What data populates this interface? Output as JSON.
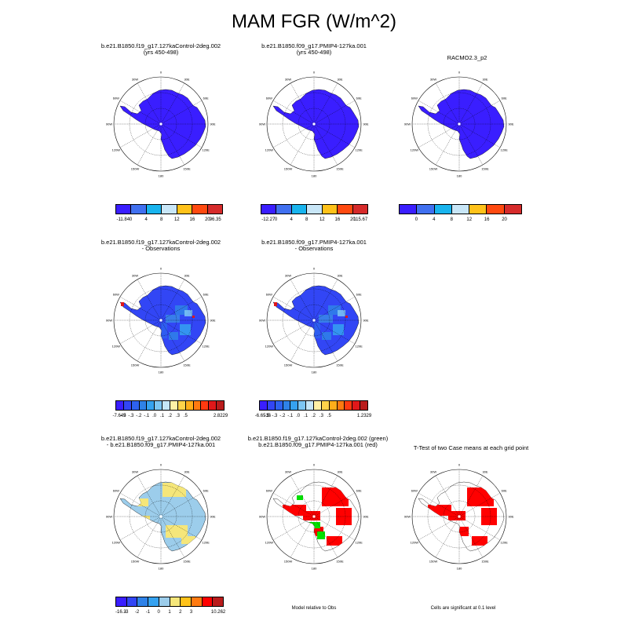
{
  "title": "MAM FGR (W/m^2)",
  "colors": {
    "ice_blue": "#3a1eff",
    "diff_blue": "#9ccdeb",
    "diff_yellow": "#f5e67a",
    "sig_red": "#ff0000",
    "sig_green": "#00e000"
  },
  "meridian_labels": [
    "0",
    "30E",
    "60E",
    "90E",
    "120E",
    "150E",
    "180",
    "150W",
    "120W",
    "90W",
    "60W",
    "30W"
  ],
  "panels": [
    {
      "id": "p1",
      "title_lines": [
        "b.e21.B1850.f19_g17.127kaControl-2deg.002",
        "(yrs 450-498)"
      ],
      "style": "model"
    },
    {
      "id": "p2",
      "title_lines": [
        "b.e21.B1850.f09_g17.PMIP4-127ka.001",
        "(yrs 450-498)"
      ],
      "style": "model"
    },
    {
      "id": "p3",
      "title_lines": [
        "RACMO2.3_p2"
      ],
      "style": "model"
    },
    {
      "id": "p4",
      "title_lines": [
        "b.e21.B1850.f19_g17.127kaControl-2deg.002",
        "- Observations"
      ],
      "style": "bias"
    },
    {
      "id": "p5",
      "title_lines": [
        "b.e21.B1850.f09_g17.PMIP4-127ka.001",
        "- Observations"
      ],
      "style": "bias"
    },
    {
      "id": "p6",
      "title_lines": [
        "b.e21.B1850.f19_g17.127kaControl-2deg.002",
        "- b.e21.B1850.f09_g17.PMIP4-127ka.001"
      ],
      "style": "diff"
    },
    {
      "id": "p7",
      "title_lines": [
        "b.e21.B1850.f19_g17.127kaControl-2deg.002 (green)",
        "b.e21.B1850.f09_g17.PMIP4-127ka.001 (red)"
      ],
      "style": "sig2"
    },
    {
      "id": "p8",
      "title_lines": [
        "T-Test of two Case means at each grid point"
      ],
      "style": "sig1"
    }
  ],
  "colorbars": [
    {
      "id": "cb1",
      "colors": [
        "#3a1eff",
        "#4070f0",
        "#19b4ee",
        "#c8e6f7",
        "#ffc21a",
        "#ff4a10",
        "#d62b2b"
      ],
      "labels": [
        "-11.84",
        "0",
        "4",
        "8",
        "12",
        "16",
        "20",
        "96.35"
      ]
    },
    {
      "id": "cb2",
      "colors": [
        "#3a1eff",
        "#4070f0",
        "#19b4ee",
        "#c8e6f7",
        "#ffc21a",
        "#ff4a10",
        "#d62b2b"
      ],
      "labels": [
        "-12.27",
        "0",
        "4",
        "8",
        "12",
        "16",
        "20",
        "115.67"
      ]
    },
    {
      "id": "cb3",
      "colors": [
        "#3a1eff",
        "#4070f0",
        "#19b4ee",
        "#c8e6f7",
        "#ffc21a",
        "#ff4a10",
        "#d62b2b"
      ],
      "labels": [
        "",
        "0",
        "4",
        "8",
        "12",
        "16",
        "20",
        ""
      ]
    },
    {
      "id": "cb4",
      "colors": [
        "#3a1eff",
        "#3246f5",
        "#2e62f0",
        "#2f82e8",
        "#35a2f0",
        "#7cc6f3",
        "#c5e6f7",
        "#fff1a6",
        "#ffd34a",
        "#ffae1a",
        "#ff7a10",
        "#ff3a10",
        "#e0181a",
        "#b91c1c"
      ],
      "labels": [
        "-7.649",
        "-.5",
        "-.3",
        "-.2",
        "-.1",
        ".0",
        ".1",
        ".2",
        ".3",
        ".5",
        "2.8229"
      ]
    },
    {
      "id": "cb5",
      "colors": [
        "#3a1eff",
        "#3246f5",
        "#2e62f0",
        "#2f82e8",
        "#35a2f0",
        "#7cc6f3",
        "#c5e6f7",
        "#fff1a6",
        "#ffd34a",
        "#ffae1a",
        "#ff7a10",
        "#ff3a10",
        "#e0181a",
        "#b91c1c"
      ],
      "labels": [
        "-6.6516",
        "-.5",
        "-.3",
        "-.2",
        "-.1",
        ".0",
        ".1",
        ".2",
        ".3",
        ".5",
        "1.2329"
      ]
    },
    {
      "id": "cb6",
      "colors": [
        "#3a1eff",
        "#3246f5",
        "#2f82e8",
        "#35a2f0",
        "#9ccdeb",
        "#f5e67a",
        "#ffc21a",
        "#ff7a10",
        "#ff0000",
        "#b91c1c"
      ],
      "labels": [
        "-16.3",
        "-3",
        "-2",
        "-1",
        "0",
        "1",
        "2",
        "3",
        "10.262"
      ]
    }
  ],
  "notes": {
    "model_relative": "Model relative to Obs",
    "significance": "Cells are significant at 0.1 level"
  }
}
